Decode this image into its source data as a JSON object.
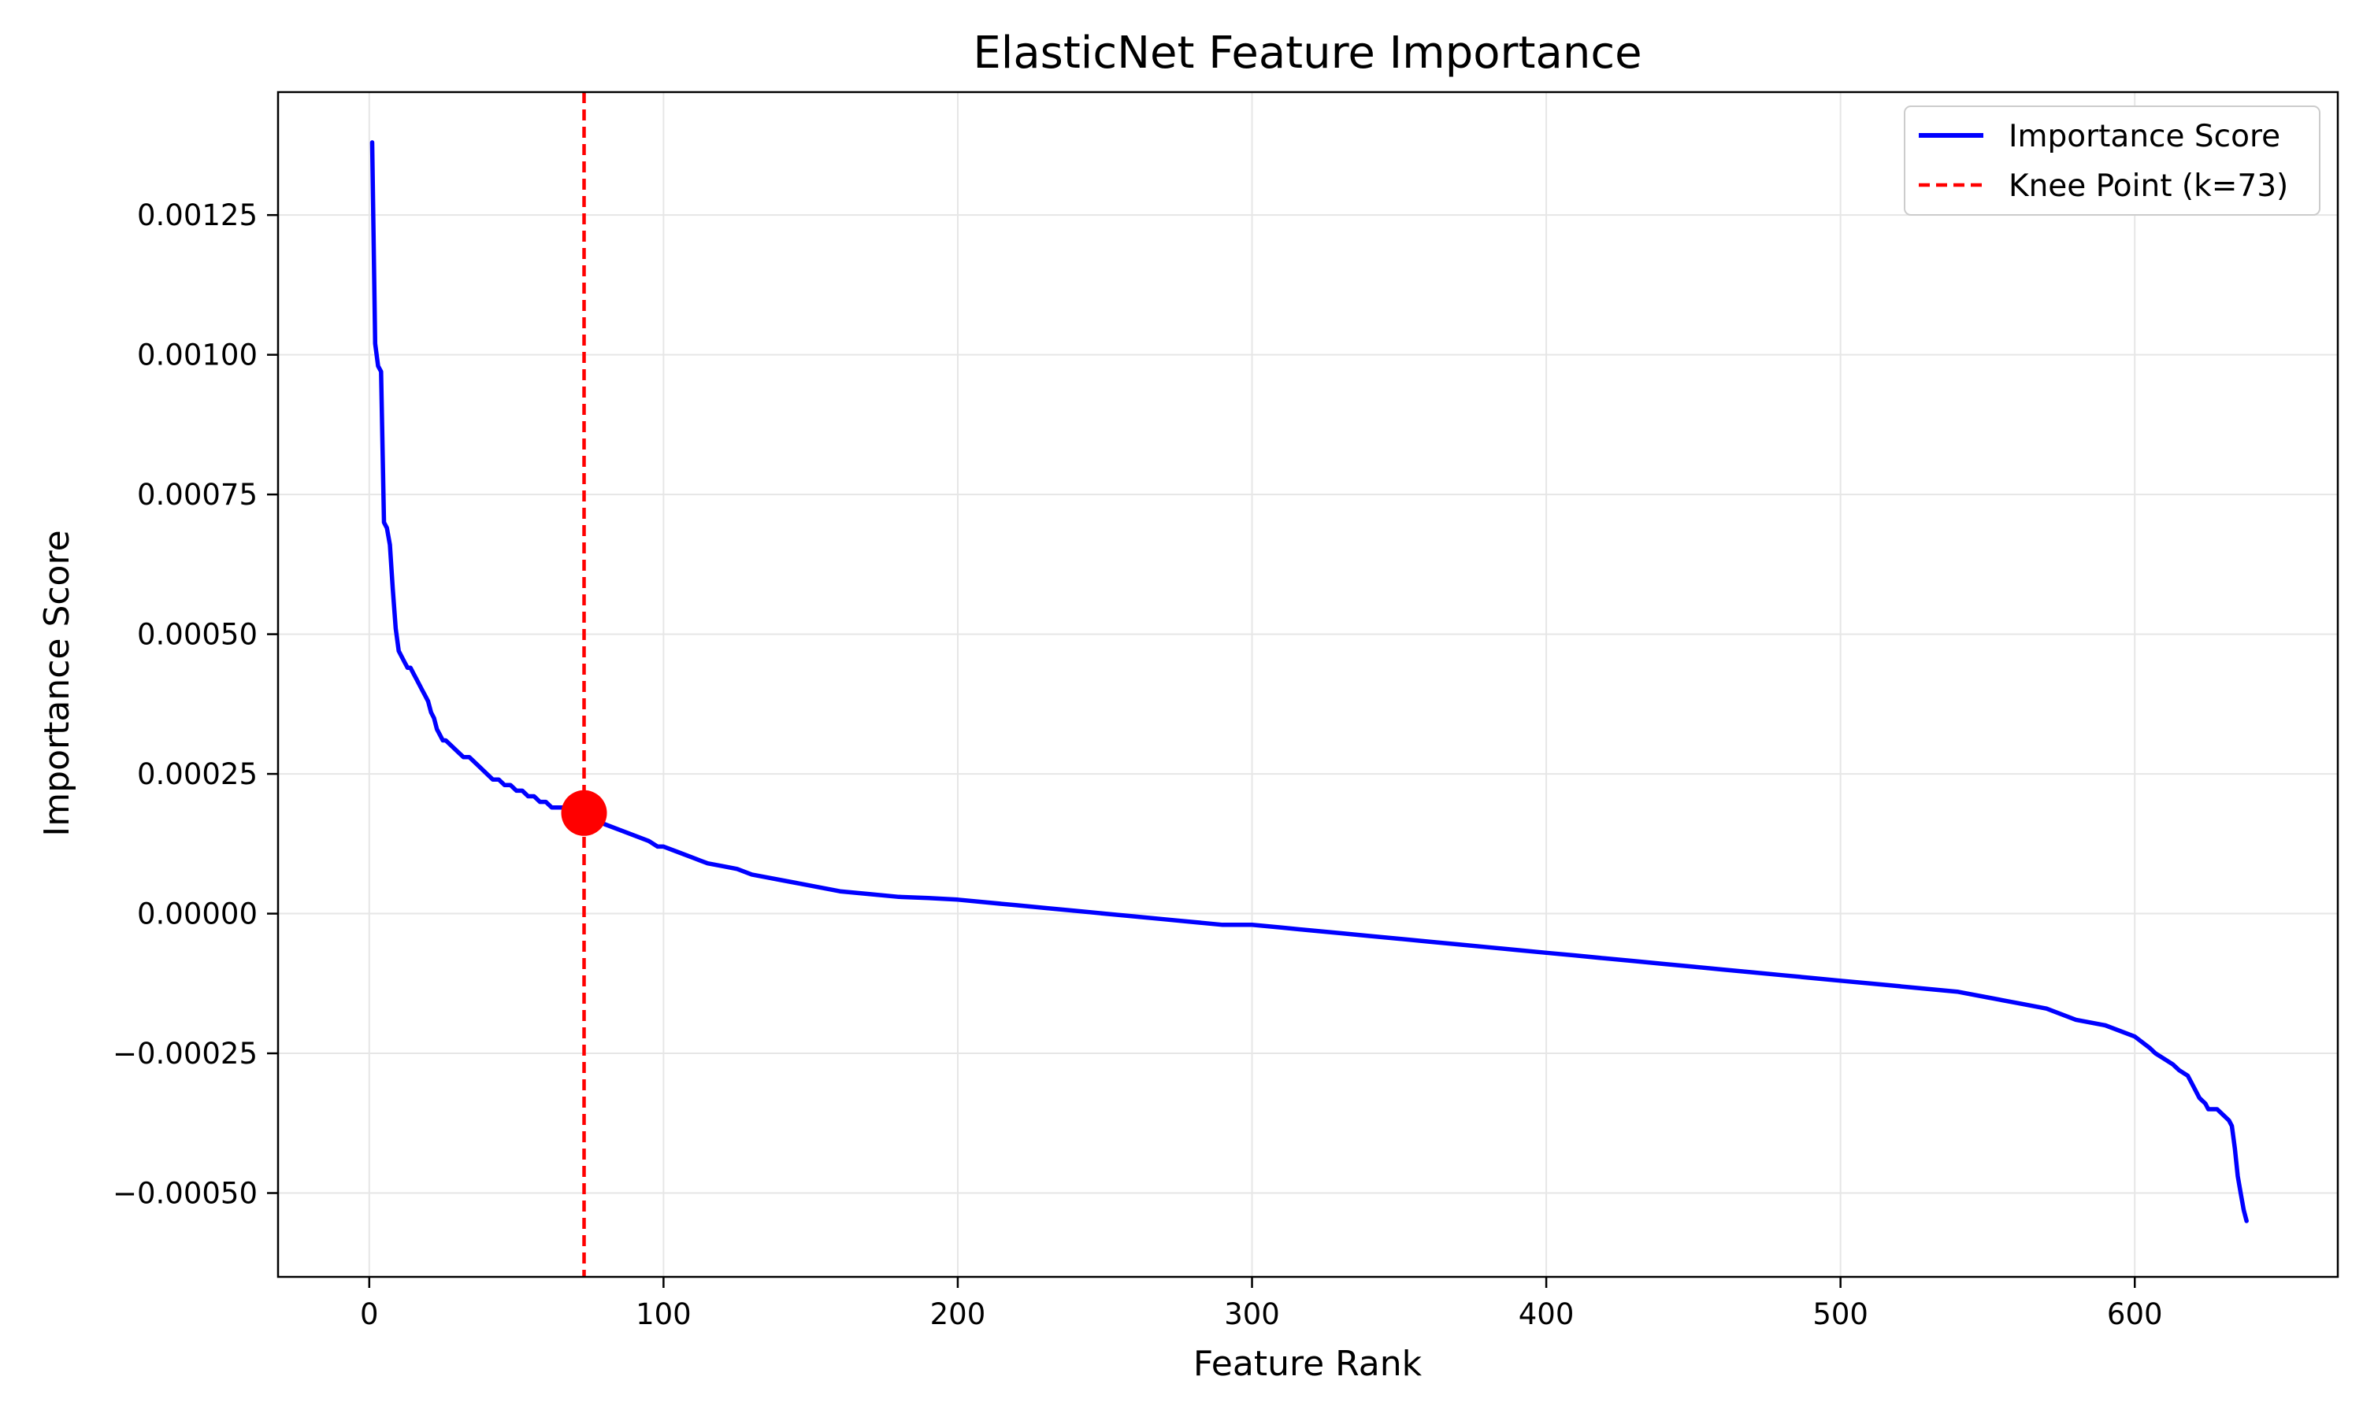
{
  "chart_data": {
    "type": "line",
    "title": "ElasticNet Feature Importance",
    "xlabel": "Feature Rank",
    "ylabel": "Importance Score",
    "xlim": [
      -31,
      669
    ],
    "ylim": [
      -0.00065,
      0.00147
    ],
    "xticks": [
      0,
      100,
      200,
      300,
      400,
      500,
      600
    ],
    "xtick_labels": [
      "0",
      "100",
      "200",
      "300",
      "400",
      "500",
      "600"
    ],
    "yticks": [
      -0.0005,
      -0.00025,
      0.0,
      0.00025,
      0.0005,
      0.00075,
      0.001,
      0.00125
    ],
    "ytick_labels": [
      "−0.00050",
      "−0.00025",
      "0.00000",
      "0.00025",
      "0.00050",
      "0.00075",
      "0.00100",
      "0.00125"
    ],
    "grid": true,
    "legend_position": "top-right",
    "series": [
      {
        "name": "Importance Score",
        "color": "#0000ff",
        "style": "solid",
        "x": [
          1,
          2,
          3,
          4,
          5,
          6,
          7,
          8,
          9,
          10,
          11,
          12,
          13,
          14,
          15,
          16,
          17,
          18,
          19,
          20,
          21,
          22,
          23,
          24,
          25,
          26,
          28,
          30,
          32,
          34,
          36,
          38,
          40,
          42,
          44,
          46,
          48,
          50,
          52,
          54,
          56,
          58,
          60,
          62,
          64,
          66,
          68,
          70,
          72,
          73,
          76,
          80,
          85,
          90,
          95,
          98,
          100,
          105,
          110,
          115,
          120,
          125,
          130,
          135,
          140,
          145,
          150,
          160,
          170,
          180,
          190,
          200,
          210,
          220,
          230,
          240,
          250,
          260,
          270,
          280,
          290,
          300,
          310,
          320,
          330,
          340,
          350,
          360,
          370,
          380,
          390,
          400,
          410,
          420,
          430,
          440,
          450,
          460,
          470,
          480,
          490,
          500,
          510,
          520,
          530,
          540,
          550,
          560,
          570,
          580,
          590,
          600,
          605,
          607,
          610,
          613,
          615,
          618,
          620,
          622,
          624,
          625,
          626,
          627,
          628,
          630,
          632,
          633,
          634,
          635,
          636,
          637,
          638
        ],
        "y": [
          0.00138,
          0.00102,
          0.00098,
          0.00097,
          0.0007,
          0.00069,
          0.00066,
          0.00058,
          0.00051,
          0.00047,
          0.00046,
          0.00045,
          0.00044,
          0.00044,
          0.00043,
          0.00042,
          0.00041,
          0.0004,
          0.00039,
          0.00038,
          0.00036,
          0.00035,
          0.00033,
          0.00032,
          0.00031,
          0.00031,
          0.0003,
          0.00029,
          0.00028,
          0.00028,
          0.00027,
          0.00026,
          0.00025,
          0.00024,
          0.00024,
          0.00023,
          0.00023,
          0.00022,
          0.00022,
          0.00021,
          0.00021,
          0.0002,
          0.0002,
          0.00019,
          0.00019,
          0.00019,
          0.00018,
          0.00018,
          0.00018,
          0.00018,
          0.00017,
          0.00016,
          0.00015,
          0.00014,
          0.00013,
          0.00012,
          0.00012,
          0.00011,
          0.0001,
          9e-05,
          8.5e-05,
          8e-05,
          7e-05,
          6.5e-05,
          6e-05,
          5.5e-05,
          5e-05,
          4e-05,
          3.5e-05,
          3e-05,
          2.8e-05,
          2.5e-05,
          2e-05,
          1.5e-05,
          1e-05,
          5e-06,
          0.0,
          -5e-06,
          -1e-05,
          -1.5e-05,
          -2e-05,
          -2e-05,
          -2.5e-05,
          -3e-05,
          -3.5e-05,
          -4e-05,
          -4.5e-05,
          -5e-05,
          -5.5e-05,
          -6e-05,
          -6.5e-05,
          -7e-05,
          -7.5e-05,
          -8e-05,
          -8.5e-05,
          -9e-05,
          -9.5e-05,
          -0.0001,
          -0.000105,
          -0.00011,
          -0.000115,
          -0.00012,
          -0.000125,
          -0.00013,
          -0.000135,
          -0.00014,
          -0.00015,
          -0.00016,
          -0.00017,
          -0.00019,
          -0.0002,
          -0.00022,
          -0.00024,
          -0.00025,
          -0.00026,
          -0.00027,
          -0.00028,
          -0.00029,
          -0.00031,
          -0.00033,
          -0.00034,
          -0.00035,
          -0.00035,
          -0.00035,
          -0.00035,
          -0.00036,
          -0.00037,
          -0.00038,
          -0.00042,
          -0.00047,
          -0.0005,
          -0.00053,
          -0.00055
        ]
      },
      {
        "name": "Knee Point (k=73)",
        "color": "#ff0000",
        "style": "dashed",
        "x_value": 73
      }
    ],
    "highlight_point": {
      "x": 73,
      "y": 0.00018,
      "color": "#ff0000"
    }
  }
}
